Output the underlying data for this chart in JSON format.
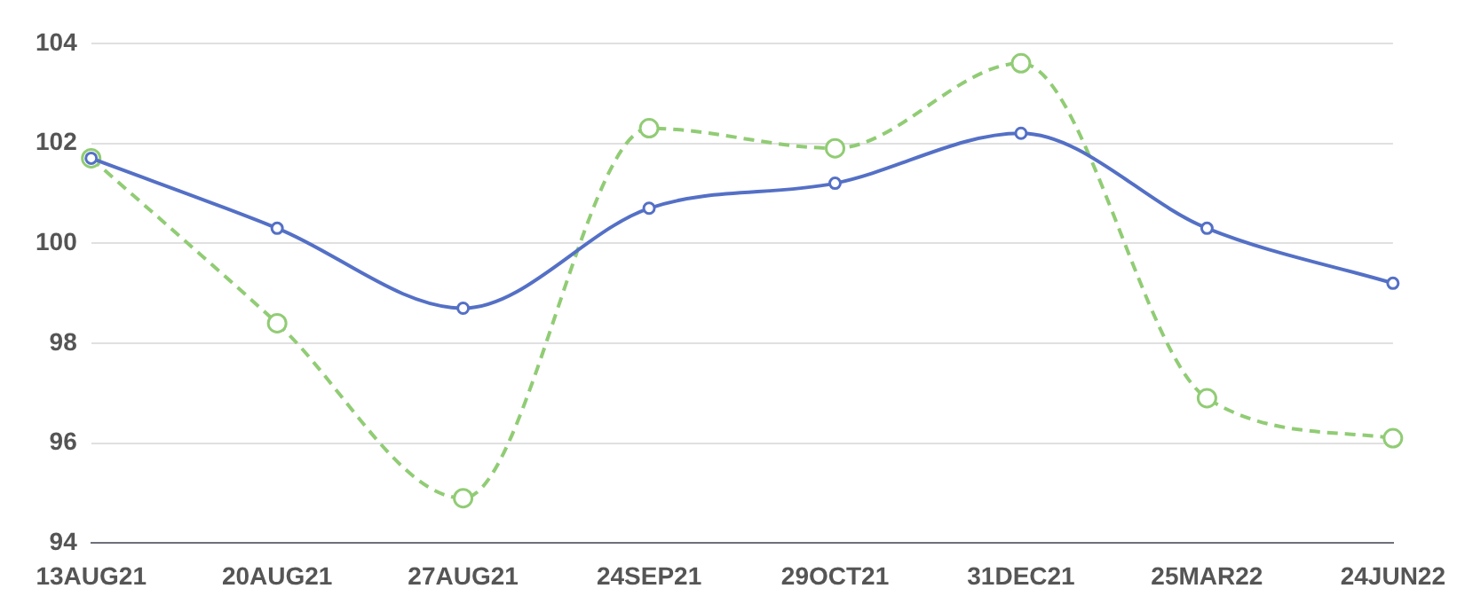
{
  "chart_data": {
    "type": "line",
    "categories": [
      "13AUG21",
      "20AUG21",
      "27AUG21",
      "24SEP21",
      "29OCT21",
      "31DEC21",
      "25MAR22",
      "24JUN22"
    ],
    "series": [
      {
        "color": "#5470c6",
        "line_style": "solid",
        "values": [
          101.7,
          100.3,
          98.7,
          100.7,
          101.2,
          102.2,
          100.3,
          99.2
        ]
      },
      {
        "color": "#91cc75",
        "line_style": "dashed",
        "values": [
          101.7,
          98.4,
          94.9,
          102.3,
          101.9,
          103.6,
          96.9,
          96.1
        ]
      }
    ],
    "ylim": [
      94,
      104
    ],
    "yticks": [
      94,
      96,
      98,
      100,
      102,
      104
    ],
    "grid": "y",
    "marker": "circle",
    "legend": false
  }
}
